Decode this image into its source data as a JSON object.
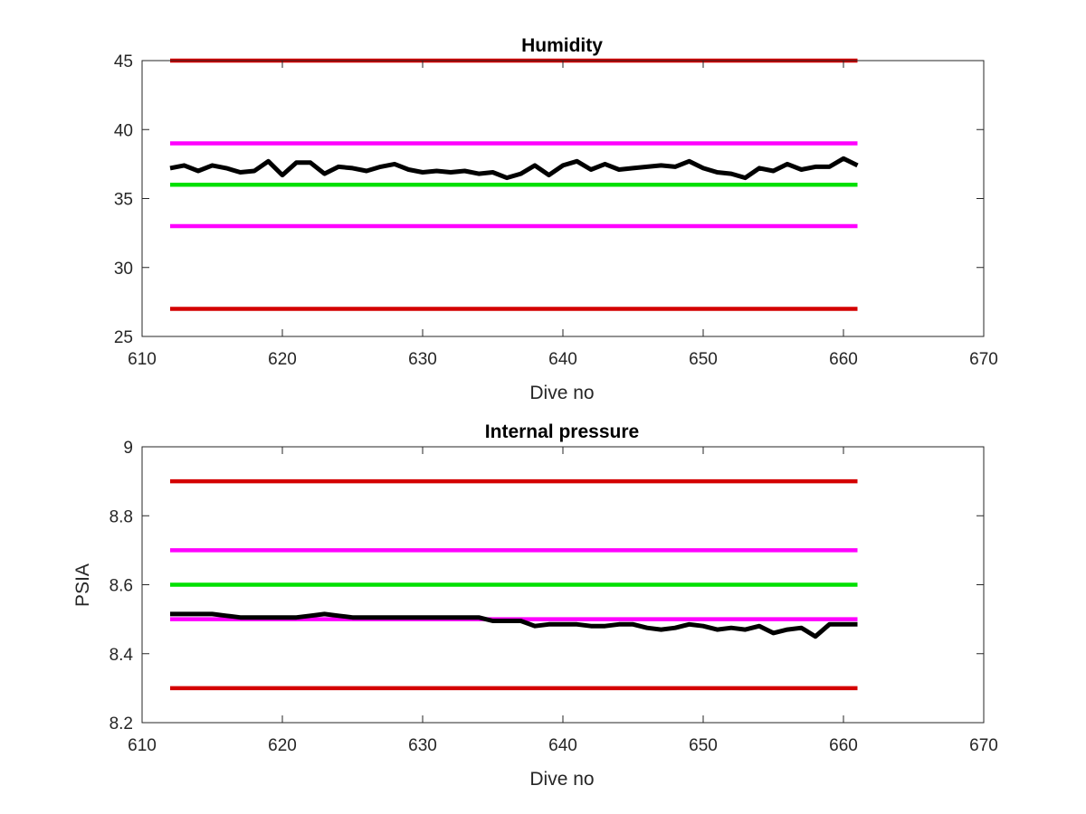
{
  "chart_data": [
    {
      "type": "line",
      "title": "Humidity",
      "xlabel": "Dive no",
      "ylabel": "",
      "xlim": [
        610,
        670
      ],
      "ylim": [
        25,
        45
      ],
      "xticks": [
        610,
        620,
        630,
        640,
        650,
        660,
        670
      ],
      "yticks": [
        25,
        30,
        35,
        40,
        45
      ],
      "grid": false,
      "series": [
        {
          "color": "#d40000",
          "x": [
            612,
            661
          ],
          "values": [
            45,
            45
          ]
        },
        {
          "color": "#ff00ff",
          "x": [
            612,
            661
          ],
          "values": [
            39,
            39
          ]
        },
        {
          "color": "#00e000",
          "x": [
            612,
            661
          ],
          "values": [
            36,
            36
          ]
        },
        {
          "color": "#ff00ff",
          "x": [
            612,
            661
          ],
          "values": [
            33,
            33
          ]
        },
        {
          "color": "#d40000",
          "x": [
            612,
            661
          ],
          "values": [
            27,
            27
          ]
        },
        {
          "color": "#000000",
          "x": [
            612,
            613,
            614,
            615,
            616,
            617,
            618,
            619,
            620,
            621,
            622,
            623,
            624,
            625,
            626,
            627,
            628,
            629,
            630,
            631,
            632,
            633,
            634,
            635,
            636,
            637,
            638,
            639,
            640,
            641,
            642,
            643,
            644,
            645,
            646,
            647,
            648,
            649,
            650,
            651,
            652,
            653,
            654,
            655,
            656,
            657,
            658,
            659,
            660,
            661
          ],
          "values": [
            37.2,
            37.4,
            37.0,
            37.4,
            37.2,
            36.9,
            37.0,
            37.7,
            36.7,
            37.6,
            37.6,
            36.8,
            37.3,
            37.2,
            37.0,
            37.3,
            37.5,
            37.1,
            36.9,
            37.0,
            36.9,
            37.0,
            36.8,
            36.9,
            36.5,
            36.8,
            37.4,
            36.7,
            37.4,
            37.7,
            37.1,
            37.5,
            37.1,
            37.2,
            37.3,
            37.4,
            37.3,
            37.7,
            37.2,
            36.9,
            36.8,
            36.5,
            37.2,
            37.0,
            37.5,
            37.1,
            37.3,
            37.3,
            37.9,
            37.4
          ]
        }
      ]
    },
    {
      "type": "line",
      "title": "Internal pressure",
      "xlabel": "Dive no",
      "ylabel": "PSIA",
      "xlim": [
        610,
        670
      ],
      "ylim": [
        8.2,
        9
      ],
      "xticks": [
        610,
        620,
        630,
        640,
        650,
        660,
        670
      ],
      "yticks": [
        8.2,
        8.4,
        8.6,
        8.8,
        9
      ],
      "grid": false,
      "series": [
        {
          "color": "#d40000",
          "x": [
            612,
            661
          ],
          "values": [
            8.9,
            8.9
          ]
        },
        {
          "color": "#ff00ff",
          "x": [
            612,
            661
          ],
          "values": [
            8.7,
            8.7
          ]
        },
        {
          "color": "#00e000",
          "x": [
            612,
            661
          ],
          "values": [
            8.6,
            8.6
          ]
        },
        {
          "color": "#ff00ff",
          "x": [
            612,
            661
          ],
          "values": [
            8.5,
            8.5
          ]
        },
        {
          "color": "#d40000",
          "x": [
            612,
            661
          ],
          "values": [
            8.3,
            8.3
          ]
        },
        {
          "color": "#000000",
          "x": [
            612,
            613,
            614,
            615,
            616,
            617,
            618,
            619,
            620,
            621,
            622,
            623,
            624,
            625,
            626,
            627,
            628,
            629,
            630,
            631,
            632,
            633,
            634,
            635,
            636,
            637,
            638,
            639,
            640,
            641,
            642,
            643,
            644,
            645,
            646,
            647,
            648,
            649,
            650,
            651,
            652,
            653,
            654,
            655,
            656,
            657,
            658,
            659,
            660,
            661
          ],
          "values": [
            8.515,
            8.515,
            8.515,
            8.515,
            8.51,
            8.505,
            8.505,
            8.505,
            8.505,
            8.505,
            8.51,
            8.515,
            8.51,
            8.505,
            8.505,
            8.505,
            8.505,
            8.505,
            8.505,
            8.505,
            8.505,
            8.505,
            8.505,
            8.495,
            8.495,
            8.495,
            8.48,
            8.485,
            8.485,
            8.485,
            8.48,
            8.48,
            8.485,
            8.485,
            8.475,
            8.47,
            8.475,
            8.485,
            8.48,
            8.47,
            8.475,
            8.47,
            8.48,
            8.46,
            8.47,
            8.475,
            8.45,
            8.485,
            8.485,
            8.485
          ]
        }
      ]
    }
  ]
}
